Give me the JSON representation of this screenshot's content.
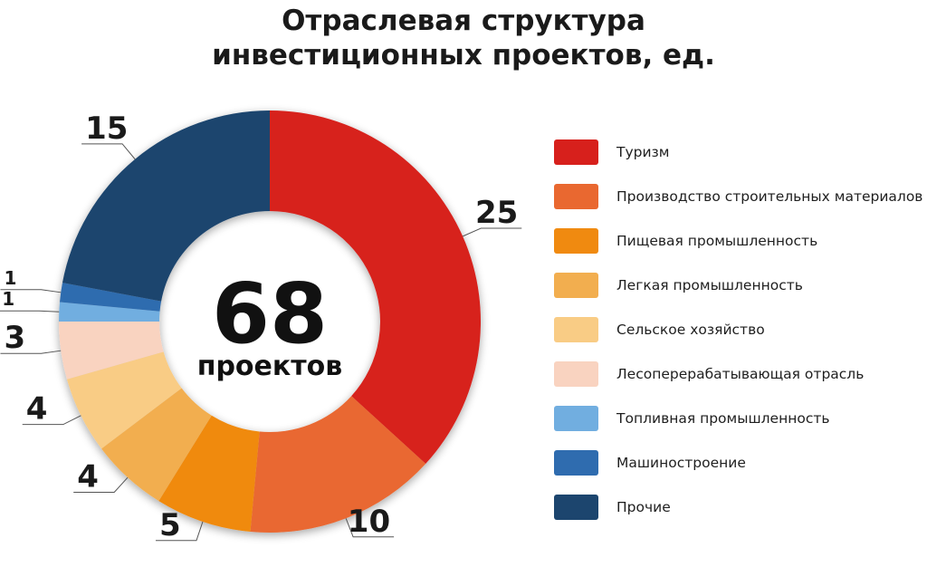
{
  "title_line1": "Отраслевая структура",
  "title_line2": "инвестиционных проектов, ед.",
  "center_total": "68",
  "center_caption": "проектов",
  "chart_data": {
    "type": "pie",
    "donut": true,
    "title": "Отраслевая структура инвестиционных проектов, ед.",
    "total": 68,
    "legend_placement": "right",
    "categories": [
      "Туризм",
      "Производство строительных материалов",
      "Пищевая промышленность",
      "Легкая промышленность",
      "Сельское хозяйство",
      "Лесоперерабатывающая отрасль",
      "Топливная промышленность",
      "Машиностроение",
      "Прочие"
    ],
    "values": [
      25,
      10,
      5,
      4,
      4,
      3,
      1,
      1,
      15
    ],
    "colors": [
      "#D7201C",
      "#E96830",
      "#F08A10",
      "#F2AE4F",
      "#F9CC85",
      "#F9D3C0",
      "#71AEE0",
      "#2F6CAF",
      "#1C456E"
    ]
  }
}
